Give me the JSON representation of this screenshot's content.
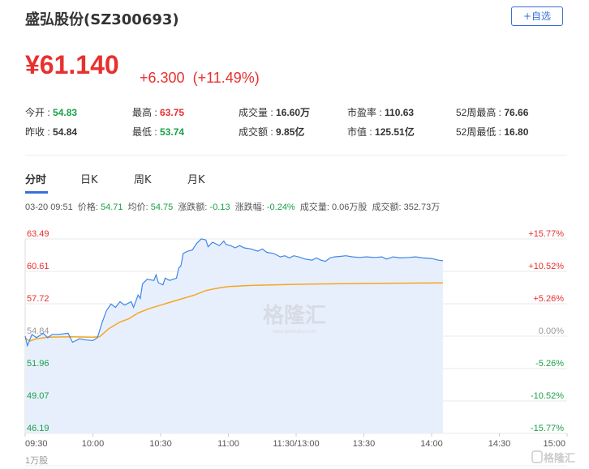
{
  "header": {
    "title": "盛弘股份(SZ300693)",
    "add_watchlist": "+自选"
  },
  "quote": {
    "price": "¥61.140",
    "change": "+6.300",
    "change_pct": "(+11.49%)"
  },
  "stats": [
    {
      "label": "今开 : ",
      "value": "54.83",
      "color": "g"
    },
    {
      "label": "最高 : ",
      "value": "63.75",
      "color": "r"
    },
    {
      "label": "成交量 : ",
      "value": "16.60万",
      "color": ""
    },
    {
      "label": "市盈率 : ",
      "value": "110.63",
      "color": ""
    },
    {
      "label": "52周最高 : ",
      "value": "76.66",
      "color": ""
    },
    {
      "label": "昨收 : ",
      "value": "54.84",
      "color": ""
    },
    {
      "label": "最低 : ",
      "value": "53.74",
      "color": "g"
    },
    {
      "label": "成交额 : ",
      "value": "9.85亿",
      "color": ""
    },
    {
      "label": "市值 : ",
      "value": "125.51亿",
      "color": ""
    },
    {
      "label": "52周最低 : ",
      "value": "16.80",
      "color": ""
    }
  ],
  "tabs": [
    "分时",
    "日K",
    "周K",
    "月K"
  ],
  "hover_info": {
    "datetime": "03-20 09:51",
    "price_label": "价格:",
    "price": "54.71",
    "avg_label": "均价:",
    "avg": "54.75",
    "chg_label": "涨跌额:",
    "chg": "-0.13",
    "pct_label": "涨跌幅:",
    "pct": "-0.24%",
    "vol_label": "成交量:",
    "vol": "0.06万股",
    "amt_label": "成交额:",
    "amt": "352.73万"
  },
  "watermark": "格隆汇",
  "watermark_url": "www.gelonghui.com",
  "volume_label": "1万股",
  "colors": {
    "price_line": "#3d86e6",
    "avg_line": "#f5a623",
    "fill": "#e8effc",
    "up": "#e8302e",
    "down": "#1aa049",
    "flat": "#999999"
  },
  "chart_data": {
    "type": "line",
    "prev_close": 54.84,
    "ylim": [
      46.19,
      63.49
    ],
    "y_ticks": [
      "63.49",
      "60.61",
      "57.72",
      "54.84",
      "51.96",
      "49.07",
      "46.19"
    ],
    "y_ticks_right": [
      "+15.77%",
      "+10.52%",
      "+5.26%",
      "0.00%",
      "-5.26%",
      "-10.52%",
      "-15.77%"
    ],
    "x_ticks": [
      "09:30",
      "10:00",
      "10:30",
      "11:00",
      "11:30/13:00",
      "13:30",
      "14:00",
      "14:30",
      "15:00"
    ],
    "x_unit_note": "minutes of trading session from 09:30 (0-240)",
    "series": [
      {
        "key": "price",
        "points": [
          [
            0,
            54.84
          ],
          [
            1,
            54.0
          ],
          [
            3,
            55.0
          ],
          [
            5,
            54.7
          ],
          [
            8,
            55.1
          ],
          [
            10,
            54.7
          ],
          [
            12,
            55.0
          ],
          [
            15,
            55.0
          ],
          [
            19,
            55.1
          ],
          [
            21,
            54.3
          ],
          [
            24,
            54.6
          ],
          [
            27,
            54.5
          ],
          [
            30,
            54.45
          ],
          [
            32,
            54.7
          ],
          [
            34,
            56.0
          ],
          [
            36,
            57.1
          ],
          [
            38,
            57.7
          ],
          [
            40,
            57.4
          ],
          [
            42,
            57.9
          ],
          [
            44,
            57.6
          ],
          [
            47,
            57.9
          ],
          [
            48,
            57.4
          ],
          [
            50,
            58.5
          ],
          [
            51,
            58.2
          ],
          [
            52,
            59.5
          ],
          [
            54,
            59.9
          ],
          [
            57,
            59.8
          ],
          [
            58,
            60.3
          ],
          [
            59,
            59.6
          ],
          [
            61,
            59.4
          ],
          [
            62,
            60.0
          ],
          [
            64,
            59.8
          ],
          [
            67,
            60.0
          ],
          [
            68,
            60.9
          ],
          [
            69,
            61.1
          ],
          [
            70,
            62.2
          ],
          [
            72,
            62.4
          ],
          [
            74,
            62.5
          ],
          [
            76,
            63.1
          ],
          [
            78,
            63.5
          ],
          [
            80,
            63.4
          ],
          [
            81,
            62.8
          ],
          [
            83,
            63.2
          ],
          [
            86,
            62.9
          ],
          [
            88,
            63.3
          ],
          [
            89,
            63.0
          ],
          [
            91,
            62.9
          ],
          [
            93,
            62.7
          ],
          [
            95,
            62.9
          ],
          [
            97,
            62.7
          ],
          [
            100,
            62.6
          ],
          [
            103,
            62.4
          ],
          [
            105,
            62.6
          ],
          [
            107,
            62.3
          ],
          [
            110,
            62.2
          ],
          [
            113,
            61.9
          ],
          [
            115,
            62.0
          ],
          [
            117,
            61.8
          ],
          [
            119,
            62.0
          ],
          [
            121,
            61.9
          ],
          [
            124,
            61.7
          ],
          [
            127,
            61.6
          ],
          [
            129,
            61.8
          ],
          [
            131,
            61.6
          ],
          [
            133,
            61.5
          ],
          [
            135,
            61.8
          ],
          [
            137,
            61.9
          ],
          [
            140,
            61.95
          ],
          [
            142,
            62.0
          ],
          [
            145,
            61.9
          ],
          [
            148,
            61.85
          ],
          [
            151,
            61.9
          ],
          [
            155,
            61.85
          ],
          [
            158,
            61.9
          ],
          [
            160,
            61.7
          ],
          [
            163,
            61.9
          ],
          [
            166,
            61.8
          ],
          [
            170,
            61.85
          ],
          [
            173,
            61.9
          ],
          [
            176,
            61.8
          ],
          [
            180,
            61.75
          ],
          [
            183,
            61.6
          ],
          [
            185,
            61.55
          ]
        ]
      },
      {
        "key": "average",
        "points": [
          [
            0,
            54.7
          ],
          [
            2,
            54.4
          ],
          [
            5,
            54.6
          ],
          [
            10,
            54.75
          ],
          [
            20,
            54.78
          ],
          [
            30,
            54.74
          ],
          [
            33,
            54.8
          ],
          [
            37,
            55.5
          ],
          [
            42,
            56.1
          ],
          [
            46,
            56.4
          ],
          [
            50,
            56.9
          ],
          [
            55,
            57.3
          ],
          [
            60,
            57.6
          ],
          [
            65,
            57.9
          ],
          [
            70,
            58.2
          ],
          [
            75,
            58.5
          ],
          [
            80,
            58.9
          ],
          [
            85,
            59.1
          ],
          [
            90,
            59.25
          ],
          [
            100,
            59.35
          ],
          [
            120,
            59.45
          ],
          [
            150,
            59.53
          ],
          [
            185,
            59.58
          ]
        ]
      }
    ]
  }
}
